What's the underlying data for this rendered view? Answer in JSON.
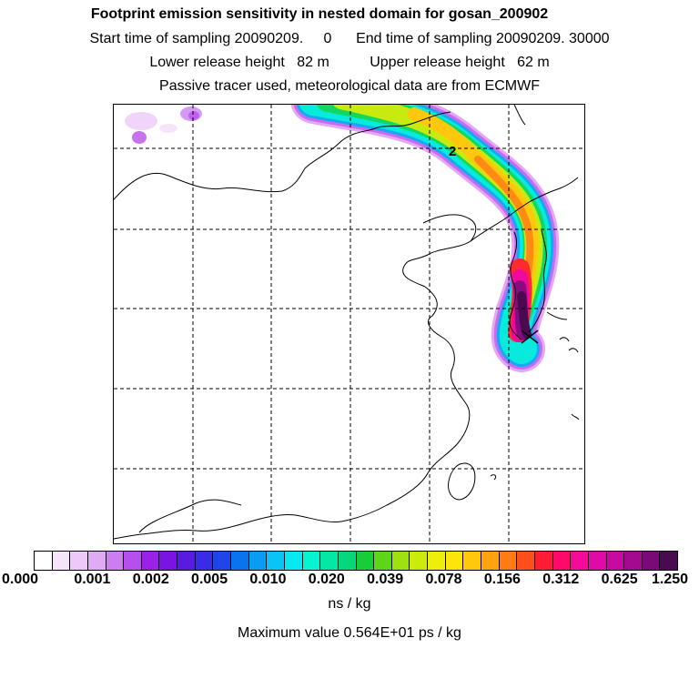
{
  "title": "Footprint emission sensitivity in nested domain for gosan_200902",
  "subtitle_lines": [
    "Start time of sampling 20090209.     0      End time of sampling 20090209. 30000",
    "Lower release height   82 m          Upper release height   62 m",
    "Passive tracer used, meteorological data are from ECMWF"
  ],
  "map": {
    "contour_labels": [
      "2"
    ],
    "receptor_marker": "x-marker"
  },
  "colorbar": {
    "colors": [
      "#ffffff",
      "#f6e4fb",
      "#eec8f8",
      "#e1aaf5",
      "#cc7ef0",
      "#b64fec",
      "#9a22e8",
      "#7a14e2",
      "#5a1ae0",
      "#3a2ce6",
      "#1e46ea",
      "#0a74ee",
      "#0a9cf2",
      "#0ac4f4",
      "#08e8f2",
      "#06f4d2",
      "#04e8a6",
      "#04d87a",
      "#18ce38",
      "#5cd616",
      "#9ee010",
      "#ccea0c",
      "#eeee0a",
      "#ffe40a",
      "#ffc80c",
      "#ffa410",
      "#ff7c14",
      "#ff4e1e",
      "#ff1c36",
      "#ff0a6a",
      "#f60a9a",
      "#e00aa8",
      "#c80aa0",
      "#a40a90",
      "#7a0a78",
      "#4a0a52"
    ],
    "tick_labels": [
      "0.000",
      "0.001",
      "0.002",
      "0.005",
      "0.010",
      "0.020",
      "0.039",
      "0.078",
      "0.156",
      "0.312",
      "0.625",
      "1.250"
    ]
  },
  "units": "ns / kg",
  "max_value_text": "Maximum value  0.564E+01 ps / kg"
}
